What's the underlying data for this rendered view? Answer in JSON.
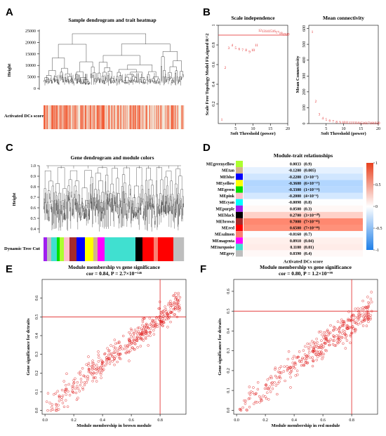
{
  "panels": {
    "A": {
      "letter": "A",
      "title": "Sample dendrogram and trait heatmap",
      "ylabel": "Height",
      "yticks": [
        "25000",
        "20000",
        "15000",
        "10000",
        "5000",
        "0"
      ],
      "trait_label": "Activated DCs score"
    },
    "C": {
      "letter": "C",
      "title": "Gene dendrogram and module colors",
      "ylabel": "Height",
      "yticks": [
        "1.0",
        "0.9",
        "0.8",
        "0.7",
        "0.6",
        "0.5",
        "0.4"
      ],
      "colorbar_label": "Dynamic Tree Cut"
    },
    "B": {
      "letter": "B"
    },
    "D": {
      "letter": "D",
      "title": "Module-trait relationships",
      "xlabel": "Activated DCs score",
      "legend_ticks": [
        "1",
        "0.5",
        "0",
        "-0.5",
        "-1"
      ]
    },
    "E": {
      "letter": "E"
    },
    "F": {
      "letter": "F"
    }
  },
  "chart_data": [
    {
      "id": "B1",
      "type": "scatter",
      "title": "Scale independence",
      "xlabel": "Soft Threshold (power)",
      "ylabel": "Scale Free Topology Model Fit,signed R^2",
      "xlim": [
        0,
        20
      ],
      "ylim": [
        0,
        1.0
      ],
      "xticks": [
        5,
        10,
        15,
        20
      ],
      "yticks": [
        0.2,
        0.4,
        0.6,
        0.8,
        1.0
      ],
      "cutoff_line": 0.9,
      "points": [
        {
          "x": 1,
          "y": 0.04,
          "label": "1"
        },
        {
          "x": 2,
          "y": 0.57,
          "label": "2"
        },
        {
          "x": 3,
          "y": 0.77,
          "label": "3"
        },
        {
          "x": 4,
          "y": 0.8,
          "label": "4"
        },
        {
          "x": 5,
          "y": 0.77,
          "label": "5"
        },
        {
          "x": 6,
          "y": 0.76,
          "label": "6"
        },
        {
          "x": 7,
          "y": 0.75,
          "label": "7"
        },
        {
          "x": 8,
          "y": 0.75,
          "label": "8"
        },
        {
          "x": 9,
          "y": 0.73,
          "label": "9"
        },
        {
          "x": 10,
          "y": 0.75,
          "label": "10"
        },
        {
          "x": 11,
          "y": 0.8,
          "label": "11"
        },
        {
          "x": 12,
          "y": 0.95,
          "label": "12"
        },
        {
          "x": 13,
          "y": 0.94,
          "label": "13"
        },
        {
          "x": 14,
          "y": 0.94,
          "label": "14"
        },
        {
          "x": 15,
          "y": 0.94,
          "label": "15"
        },
        {
          "x": 16,
          "y": 0.94,
          "label": "16"
        },
        {
          "x": 17,
          "y": 0.93,
          "label": "17"
        },
        {
          "x": 18,
          "y": 0.92,
          "label": "18"
        },
        {
          "x": 19,
          "y": 0.91,
          "label": "19"
        },
        {
          "x": 20,
          "y": 0.91,
          "label": "20"
        }
      ]
    },
    {
      "id": "B2",
      "type": "scatter",
      "title": "Mean connectivity",
      "xlabel": "Soft Threshold (power)",
      "ylabel": "Mean Connectivity",
      "xlim": [
        0,
        20
      ],
      "ylim": [
        0,
        620
      ],
      "xticks": [
        5,
        10,
        15,
        20
      ],
      "yticks": [
        0,
        100,
        200,
        300,
        400,
        500,
        600
      ],
      "points": [
        {
          "x": 1,
          "y": 580,
          "label": "1"
        },
        {
          "x": 2,
          "y": 140,
          "label": "2"
        },
        {
          "x": 3,
          "y": 60,
          "label": "3"
        },
        {
          "x": 4,
          "y": 35,
          "label": "4"
        },
        {
          "x": 5,
          "y": 25,
          "label": "5"
        },
        {
          "x": 6,
          "y": 18,
          "label": "6"
        },
        {
          "x": 7,
          "y": 14,
          "label": "7"
        },
        {
          "x": 8,
          "y": 11,
          "label": "8"
        },
        {
          "x": 9,
          "y": 9,
          "label": "9"
        },
        {
          "x": 10,
          "y": 8,
          "label": "10"
        },
        {
          "x": 11,
          "y": 7,
          "label": "11"
        },
        {
          "x": 12,
          "y": 6,
          "label": "12"
        },
        {
          "x": 13,
          "y": 5,
          "label": "13"
        },
        {
          "x": 14,
          "y": 5,
          "label": "14"
        },
        {
          "x": 15,
          "y": 4,
          "label": "15"
        },
        {
          "x": 16,
          "y": 4,
          "label": "16"
        },
        {
          "x": 17,
          "y": 4,
          "label": "17"
        },
        {
          "x": 18,
          "y": 3,
          "label": "18"
        },
        {
          "x": 19,
          "y": 3,
          "label": "19"
        },
        {
          "x": 20,
          "y": 3,
          "label": "20"
        }
      ]
    },
    {
      "id": "D",
      "type": "heatmap",
      "title": "Module-trait relationships",
      "xlabel": "Activated DCs score",
      "color_range": [
        -1,
        1
      ],
      "rows": [
        {
          "module": "MEgreenyellow",
          "color": "#adff2f",
          "cor": "0.0033",
          "p": "(0.9)",
          "value": 0.0033
        },
        {
          "module": "MEtan",
          "color": "#d2b48c",
          "cor": "-0.1200",
          "p": "(0.005)",
          "value": -0.12
        },
        {
          "module": "MEblue",
          "color": "#0000ff",
          "cor": "-0.2200",
          "p": "(3×10⁻⁷)",
          "value": -0.22
        },
        {
          "module": "MEyellow",
          "color": "#ffff00",
          "cor": "-0.3600",
          "p": "(6×10⁻¹⁷)",
          "value": -0.36
        },
        {
          "module": "MEgreen",
          "color": "#00e000",
          "cor": "-0.3300",
          "p": "(1×10⁻¹⁴)",
          "value": -0.33
        },
        {
          "module": "MEpink",
          "color": "#ffc0cb",
          "cor": "-0.2000",
          "p": "(4×10⁻⁶)",
          "value": -0.2
        },
        {
          "module": "MEcyan",
          "color": "#00ffff",
          "cor": "-0.0098",
          "p": "(0.8)",
          "value": -0.0098
        },
        {
          "module": "MEpurple",
          "color": "#a020f0",
          "cor": "0.0500",
          "p": "(0.3)",
          "value": 0.05
        },
        {
          "module": "MEblack",
          "color": "#000000",
          "cor": "0.2700",
          "p": "(3×10⁻¹⁰)",
          "value": 0.27
        },
        {
          "module": "MEbrown",
          "color": "#a52a2a",
          "cor": "0.7000",
          "p": "(7×10⁻⁸³)",
          "value": 0.7
        },
        {
          "module": "MEred",
          "color": "#ff0000",
          "cor": "0.6500",
          "p": "(7×10⁻⁶⁸)",
          "value": 0.65
        },
        {
          "module": "MEsalmon",
          "color": "#fa8072",
          "cor": "-0.0160",
          "p": "(0.7)",
          "value": -0.016
        },
        {
          "module": "MEmagenta",
          "color": "#ff00ff",
          "cor": "0.0910",
          "p": "(0.04)",
          "value": 0.091
        },
        {
          "module": "MEturquoise",
          "color": "#40e0d0",
          "cor": "0.1100",
          "p": "(0.01)",
          "value": 0.11
        },
        {
          "module": "MEgrey",
          "color": "#bebebe",
          "cor": "0.0390",
          "p": "(0.4)",
          "value": 0.039
        }
      ]
    },
    {
      "id": "E",
      "type": "scatter",
      "title": "Module membership vs gene significance",
      "subtitle": "cor = 0.84, P = 2.7×10⁻¹⁴⁶",
      "xlabel": "Module membership in brown module",
      "ylabel": "Gene significance for dctraits",
      "xlim": [
        -0.02,
        0.98
      ],
      "ylim": [
        -0.02,
        0.7
      ],
      "xticks": [
        0.0,
        0.2,
        0.4,
        0.6,
        0.8
      ],
      "yticks": [
        0.0,
        0.1,
        0.2,
        0.3,
        0.4,
        0.5,
        0.6
      ],
      "vline": 0.8,
      "hline": 0.5,
      "n_points": 420,
      "trend": {
        "slope": 0.6,
        "intercept": 0.01,
        "noise": 0.07
      }
    },
    {
      "id": "F",
      "type": "scatter",
      "title": "Module membership vs gene significance",
      "subtitle": "cor = 0.80, P = 1.2×10⁻⁹⁹",
      "xlabel": "Module membership in red module",
      "ylabel": "Gene significance for dctraits",
      "xlim": [
        -0.02,
        0.98
      ],
      "ylim": [
        -0.02,
        0.66
      ],
      "xticks": [
        0.0,
        0.2,
        0.4,
        0.6,
        0.8
      ],
      "yticks": [
        0.0,
        0.1,
        0.2,
        0.3,
        0.4,
        0.5,
        0.6
      ],
      "vline": 0.8,
      "hline": 0.5,
      "n_points": 380,
      "trend": {
        "slope": 0.55,
        "intercept": 0.0,
        "noise": 0.065
      }
    }
  ],
  "colors": {
    "accent_red": "#e02020",
    "heat_high": "#f25a3a",
    "heat_low": "#2f8ee8"
  }
}
